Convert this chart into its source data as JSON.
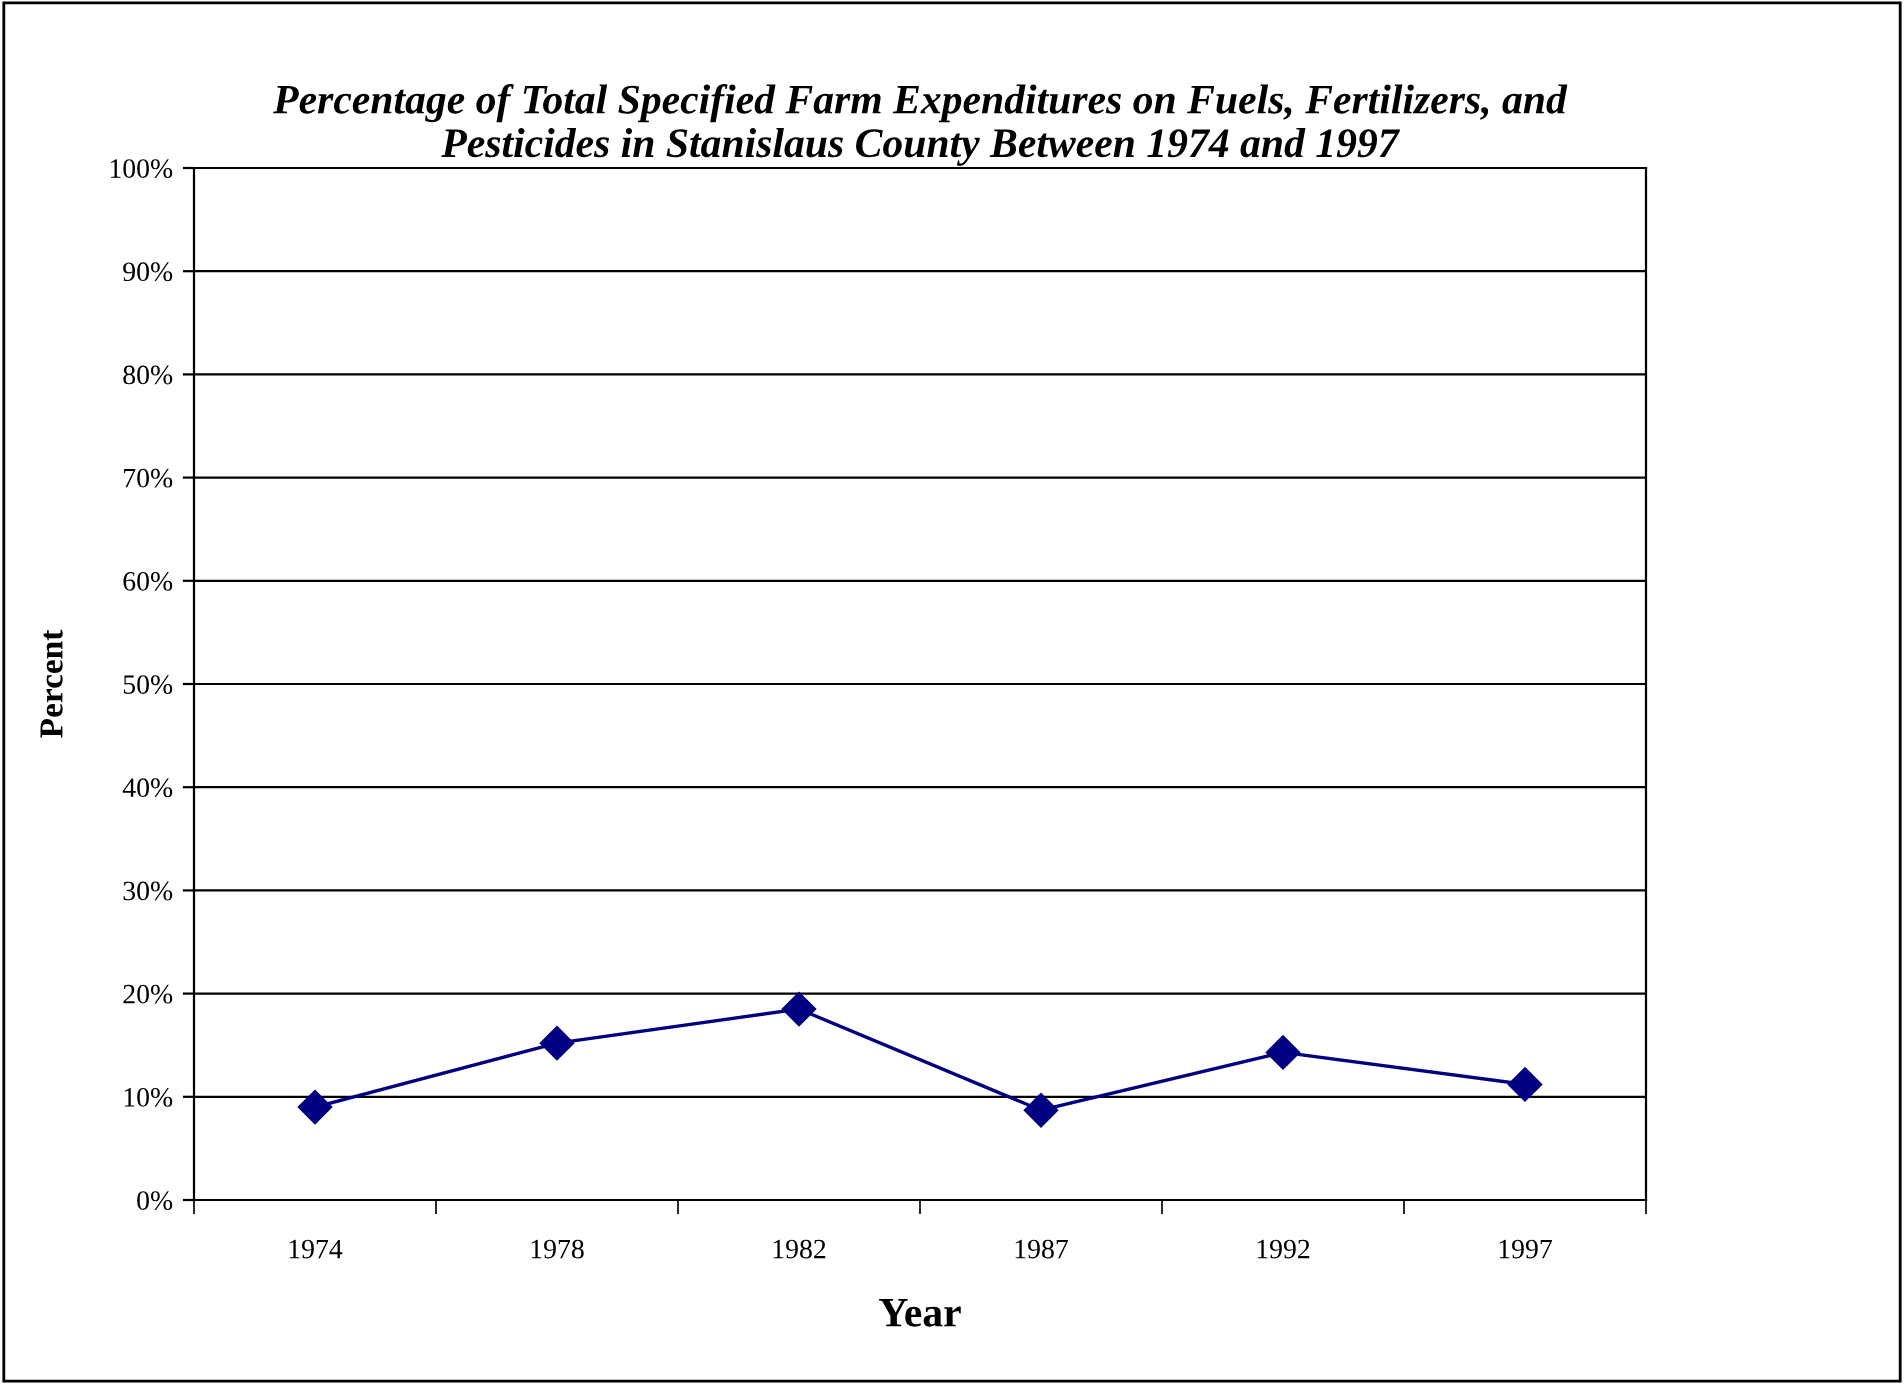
{
  "chart_data": {
    "type": "line",
    "title": "Percentage of Total Specified Farm Expenditures on Fuels, Fertilizers, and\nPesticides in Stanislaus County Between 1974 and 1997",
    "xlabel": "Year",
    "ylabel": "Percent",
    "categories": [
      "1974",
      "1978",
      "1982",
      "1987",
      "1992",
      "1997"
    ],
    "series": [
      {
        "color": "#000080",
        "values": [
          9.0,
          15.2,
          18.5,
          8.7,
          14.3,
          11.2
        ]
      }
    ],
    "ylim": [
      0,
      100
    ],
    "yticks": [
      {
        "value": 0,
        "label": "0%"
      },
      {
        "value": 10,
        "label": "10%"
      },
      {
        "value": 20,
        "label": "20%"
      },
      {
        "value": 30,
        "label": "30%"
      },
      {
        "value": 40,
        "label": "40%"
      },
      {
        "value": 50,
        "label": "50%"
      },
      {
        "value": 60,
        "label": "60%"
      },
      {
        "value": 70,
        "label": "70%"
      },
      {
        "value": 80,
        "label": "80%"
      },
      {
        "value": 90,
        "label": "90%"
      },
      {
        "value": 100,
        "label": "100%"
      }
    ],
    "grid": "y",
    "marker": "diamond",
    "line_style": "solid"
  }
}
